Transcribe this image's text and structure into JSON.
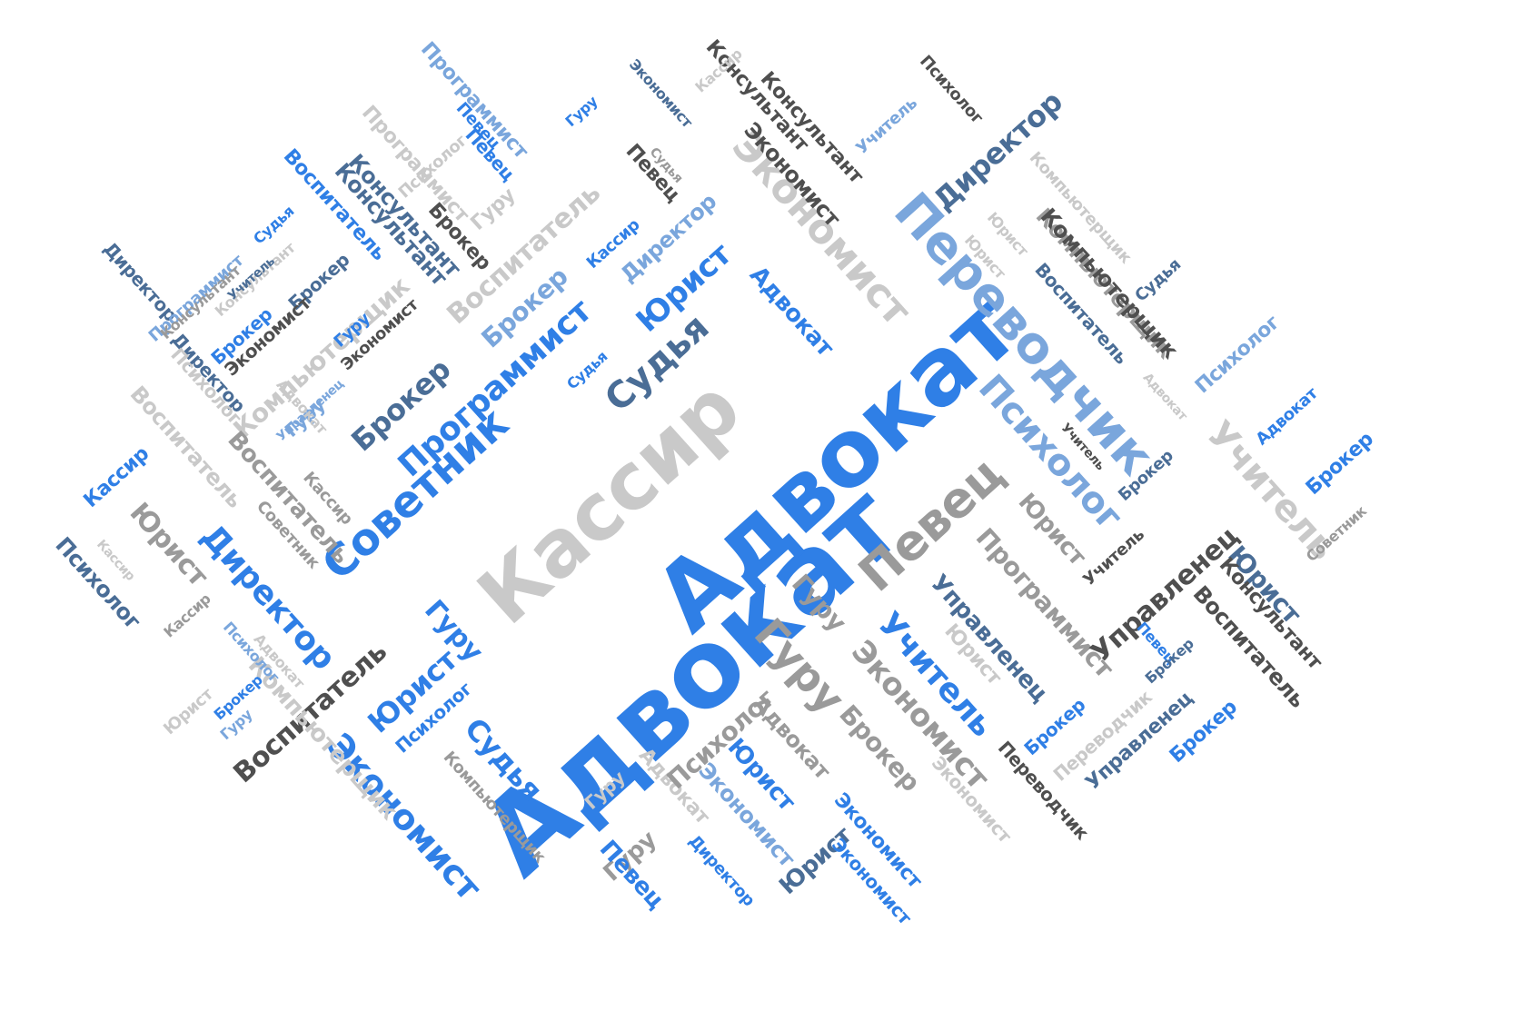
{
  "palette": {
    "blue": "#2f7fe6",
    "navy": "#4a6d96",
    "lightblue": "#7aa6dc",
    "gray": "#9a9a9a",
    "lightgray": "#c9c9c9",
    "dark": "#4f4f4f"
  },
  "words": [
    {
      "text": "Адвокат",
      "color": "blue"
    },
    {
      "text": "Кассир",
      "color": "lightgray"
    },
    {
      "text": "Адвокат",
      "color": "blue"
    },
    {
      "text": "Переводчик",
      "color": "lightblue"
    },
    {
      "text": "Советник",
      "color": "blue"
    },
    {
      "text": "Певец",
      "color": "gray"
    },
    {
      "text": "Экономист",
      "color": "lightgray"
    },
    {
      "text": "Психолог",
      "color": "lightblue"
    },
    {
      "text": "Программист",
      "color": "blue"
    },
    {
      "text": "Судья",
      "color": "navy"
    },
    {
      "text": "Директор",
      "color": "navy"
    },
    {
      "text": "Брокер",
      "color": "navy"
    },
    {
      "text": "Юрист",
      "color": "blue"
    },
    {
      "text": "Адвокат",
      "color": "blue"
    },
    {
      "text": "Гуру",
      "color": "gray"
    },
    {
      "text": "Экономист",
      "color": "gray"
    },
    {
      "text": "Учитель",
      "color": "blue"
    },
    {
      "text": "Экономист",
      "color": "blue"
    },
    {
      "text": "Директор",
      "color": "blue"
    },
    {
      "text": "Учитель",
      "color": "lightgray"
    },
    {
      "text": "Программист",
      "color": "gray"
    },
    {
      "text": "Управленец",
      "color": "navy"
    },
    {
      "text": "Управленец",
      "color": "dark"
    },
    {
      "text": "Компьютерщик",
      "color": "gray"
    },
    {
      "text": "Компьютерщик",
      "color": "lightgray"
    },
    {
      "text": "Воспитатель",
      "color": "lightgray"
    },
    {
      "text": "Брокер",
      "color": "lightblue"
    },
    {
      "text": "Программист",
      "color": "lightblue"
    },
    {
      "text": "Консультант",
      "color": "dark"
    },
    {
      "text": "Экономист",
      "color": "dark"
    },
    {
      "text": "Консультант",
      "color": "navy"
    },
    {
      "text": "Директор",
      "color": "lightblue"
    },
    {
      "text": "Юрист",
      "color": "navy"
    },
    {
      "text": "Кассир",
      "color": "blue"
    },
    {
      "text": "Юрист",
      "color": "gray"
    },
    {
      "text": "Психолог",
      "color": "navy"
    },
    {
      "text": "Воспитатель",
      "color": "gray"
    },
    {
      "text": "Воспитатель",
      "color": "lightgray"
    },
    {
      "text": "Воспитатель",
      "color": "dark"
    },
    {
      "text": "Компьютерщик",
      "color": "lightgray"
    },
    {
      "text": "Судья",
      "color": "blue"
    },
    {
      "text": "Психолог",
      "color": "blue"
    },
    {
      "text": "Юрист",
      "color": "blue"
    },
    {
      "text": "Гуру",
      "color": "blue"
    },
    {
      "text": "Компьютерщик",
      "color": "gray"
    },
    {
      "text": "Гуру",
      "color": "gray"
    },
    {
      "text": "Адвокат",
      "color": "lightgray"
    },
    {
      "text": "Экономист",
      "color": "lightgray"
    },
    {
      "text": "Брокер",
      "color": "gray"
    },
    {
      "text": "Экономист",
      "color": "blue"
    },
    {
      "text": "Юрист",
      "color": "blue"
    },
    {
      "text": "Экономист",
      "color": "lightblue"
    },
    {
      "text": "Юрист",
      "color": "navy"
    },
    {
      "text": "Экономист",
      "color": "blue"
    },
    {
      "text": "Директор",
      "color": "blue"
    },
    {
      "text": "Певец",
      "color": "blue"
    },
    {
      "text": "Гуру",
      "color": "gray"
    },
    {
      "text": "Гуру",
      "color": "lightgray"
    },
    {
      "text": "Адвокат",
      "color": "gray"
    },
    {
      "text": "Психолог",
      "color": "gray"
    },
    {
      "text": "Переводчик",
      "color": "dark"
    },
    {
      "text": "Брокер",
      "color": "blue"
    },
    {
      "text": "Переводчик",
      "color": "lightgray"
    },
    {
      "text": "Управленец",
      "color": "navy"
    },
    {
      "text": "Брокер",
      "color": "blue"
    },
    {
      "text": "Воспитатель",
      "color": "dark"
    },
    {
      "text": "Консультант",
      "color": "dark"
    },
    {
      "text": "Юрист",
      "color": "gray"
    },
    {
      "text": "Певец",
      "color": "blue"
    },
    {
      "text": "Брокер",
      "color": "navy"
    },
    {
      "text": "Юрист",
      "color": "lightgray"
    },
    {
      "text": "Юрист",
      "color": "lightgray"
    },
    {
      "text": "Советник",
      "color": "gray"
    },
    {
      "text": "Брокер",
      "color": "blue"
    },
    {
      "text": "Адвокат",
      "color": "blue"
    },
    {
      "text": "Учитель",
      "color": "dark"
    },
    {
      "text": "Учитель",
      "color": "dark"
    },
    {
      "text": "Психолог",
      "color": "lightblue"
    },
    {
      "text": "Брокер",
      "color": "navy"
    },
    {
      "text": "Адвокат",
      "color": "lightgray"
    },
    {
      "text": "Судья",
      "color": "navy"
    },
    {
      "text": "Воспитатель",
      "color": "navy"
    },
    {
      "text": "Юрист",
      "color": "lightgray"
    },
    {
      "text": "Компьютерщик",
      "color": "dark"
    },
    {
      "text": "Компьютерщик",
      "color": "lightgray"
    },
    {
      "text": "Психолог",
      "color": "dark"
    },
    {
      "text": "Директор",
      "color": "navy"
    },
    {
      "text": "Экономист",
      "color": "dark"
    },
    {
      "text": "Консультант",
      "color": "dark"
    },
    {
      "text": "Учитель",
      "color": "lightblue"
    },
    {
      "text": "Кассир",
      "color": "lightgray"
    },
    {
      "text": "Экономист",
      "color": "navy"
    },
    {
      "text": "Гуру",
      "color": "blue"
    },
    {
      "text": "Певец",
      "color": "blue"
    },
    {
      "text": "Программист",
      "color": "lightblue"
    },
    {
      "text": "Психолог",
      "color": "lightgray"
    },
    {
      "text": "Консультант",
      "color": "lightgray"
    },
    {
      "text": "Певец",
      "color": "dark"
    },
    {
      "text": "Судья",
      "color": "gray"
    },
    {
      "text": "Брокер",
      "color": "dark"
    },
    {
      "text": "Гуру",
      "color": "lightgray"
    },
    {
      "text": "Кассир",
      "color": "blue"
    },
    {
      "text": "Брокер",
      "color": "blue"
    },
    {
      "text": "Воспитатель",
      "color": "blue"
    },
    {
      "text": "Консультант",
      "color": "navy"
    },
    {
      "text": "Певец",
      "color": "blue"
    },
    {
      "text": "Судья",
      "color": "blue"
    },
    {
      "text": "Директор",
      "color": "navy"
    },
    {
      "text": "Программист",
      "color": "lightgray"
    },
    {
      "text": "Консультант",
      "color": "gray"
    },
    {
      "text": "Учитель",
      "color": "navy"
    },
    {
      "text": "Брокер",
      "color": "navy"
    },
    {
      "text": "Экономист",
      "color": "dark"
    },
    {
      "text": "Гуру",
      "color": "blue"
    },
    {
      "text": "Управленец",
      "color": "lightblue"
    },
    {
      "text": "Гуру",
      "color": "lightblue"
    },
    {
      "text": "Судья",
      "color": "blue"
    },
    {
      "text": "Психолог",
      "color": "lightgray"
    },
    {
      "text": "Кассир",
      "color": "gray"
    },
    {
      "text": "Советник",
      "color": "gray"
    },
    {
      "text": "Кассир",
      "color": "lightgray"
    },
    {
      "text": "Адвокат",
      "color": "lightgray"
    },
    {
      "text": "Кассир",
      "color": "gray"
    },
    {
      "text": "Брокер",
      "color": "blue"
    },
    {
      "text": "Психолог",
      "color": "lightblue"
    },
    {
      "text": "Юрист",
      "color": "lightgray"
    },
    {
      "text": "Гуру",
      "color": "lightblue"
    },
    {
      "text": "Адвокат",
      "color": "lightgray"
    }
  ]
}
